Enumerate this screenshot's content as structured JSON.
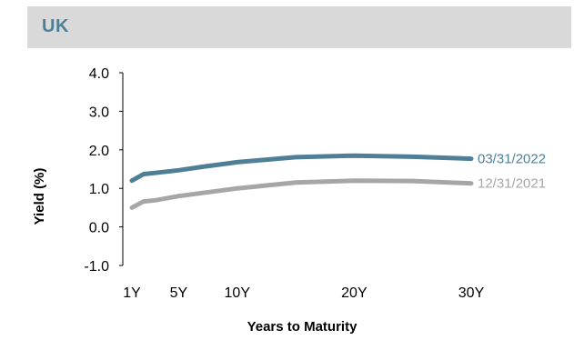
{
  "header": {
    "title": "UK"
  },
  "colors": {
    "header_bg": "#d9d9d9",
    "title": "#4f7f96",
    "axis": "#000000"
  },
  "chart_data": {
    "type": "line",
    "title": "UK",
    "xlabel": "Years to Maturity",
    "ylabel": "Yield (%)",
    "ylim": [
      -1.0,
      4.0
    ],
    "xlim": [
      1,
      30
    ],
    "grid": false,
    "legend": "inline-right",
    "y_ticks": [
      "4.0",
      "3.0",
      "2.0",
      "1.0",
      "0.0",
      "-1.0"
    ],
    "x_ticks": [
      {
        "label": "1Y",
        "value": 1
      },
      {
        "label": "5Y",
        "value": 5
      },
      {
        "label": "10Y",
        "value": 10
      },
      {
        "label": "20Y",
        "value": 20
      },
      {
        "label": "30Y",
        "value": 30
      }
    ],
    "series": [
      {
        "name": "03/31/2022",
        "color": "#4f7f96",
        "x": [
          1,
          2,
          3,
          5,
          7,
          10,
          15,
          20,
          25,
          30
        ],
        "y": [
          1.2,
          1.37,
          1.4,
          1.47,
          1.56,
          1.68,
          1.81,
          1.85,
          1.82,
          1.77
        ]
      },
      {
        "name": "12/31/2021",
        "color": "#a6a6a6",
        "x": [
          1,
          2,
          3,
          5,
          7,
          10,
          15,
          20,
          25,
          30
        ],
        "y": [
          0.5,
          0.66,
          0.69,
          0.8,
          0.88,
          1.0,
          1.15,
          1.2,
          1.19,
          1.13
        ]
      }
    ]
  }
}
